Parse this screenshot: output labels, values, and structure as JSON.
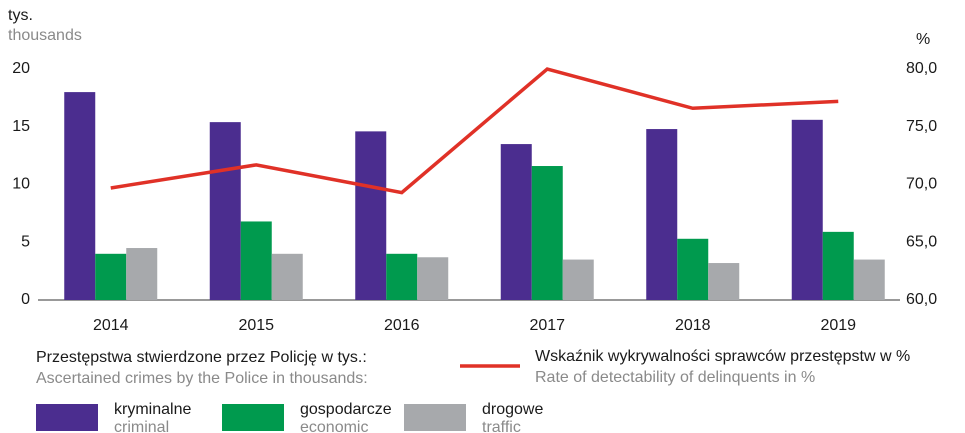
{
  "chart_data": {
    "type": "bar",
    "y_label": "tys.",
    "y_label_en": "thousands",
    "y2_label": "%",
    "categories": [
      "2014",
      "2015",
      "2016",
      "2017",
      "2018",
      "2019"
    ],
    "bar_legend_title": "Przestępstwa stwierdzone przez Policję w tys.:",
    "bar_legend_title_en": "Ascertained crimes by the Police in thousands:",
    "series": [
      {
        "name": "kryminalne",
        "name_en": "criminal",
        "color": "#4b2d8f",
        "values": [
          18.0,
          15.4,
          14.6,
          13.5,
          14.8,
          15.6
        ]
      },
      {
        "name": "gospodarcze",
        "name_en": "economic",
        "color": "#009a4e",
        "values": [
          4.0,
          6.8,
          4.0,
          11.6,
          5.3,
          5.9
        ]
      },
      {
        "name": "drogowe",
        "name_en": "traffic",
        "color": "#a7a9ac",
        "values": [
          4.5,
          4.0,
          3.7,
          3.5,
          3.2,
          3.5
        ]
      },
      {
        "name": "Wskaźnik wykrywalności sprawców przestępstw w %",
        "name_en": "Rate of detectability of delinquents in %",
        "color": "#e03127",
        "axis": "y2",
        "type": "line",
        "values": [
          69.7,
          71.7,
          69.3,
          80.0,
          76.6,
          77.2
        ]
      }
    ],
    "ylim": [
      0,
      20
    ],
    "yticks": [
      0,
      5,
      10,
      15,
      20
    ],
    "y2lim": [
      60,
      80
    ],
    "y2ticks": [
      {
        "value": 60,
        "label": "60,0"
      },
      {
        "value": 65,
        "label": "65,0"
      },
      {
        "value": 70,
        "label": "70,0"
      },
      {
        "value": 75,
        "label": "75,0"
      },
      {
        "value": 80,
        "label": "80,0"
      }
    ],
    "grid": false
  }
}
